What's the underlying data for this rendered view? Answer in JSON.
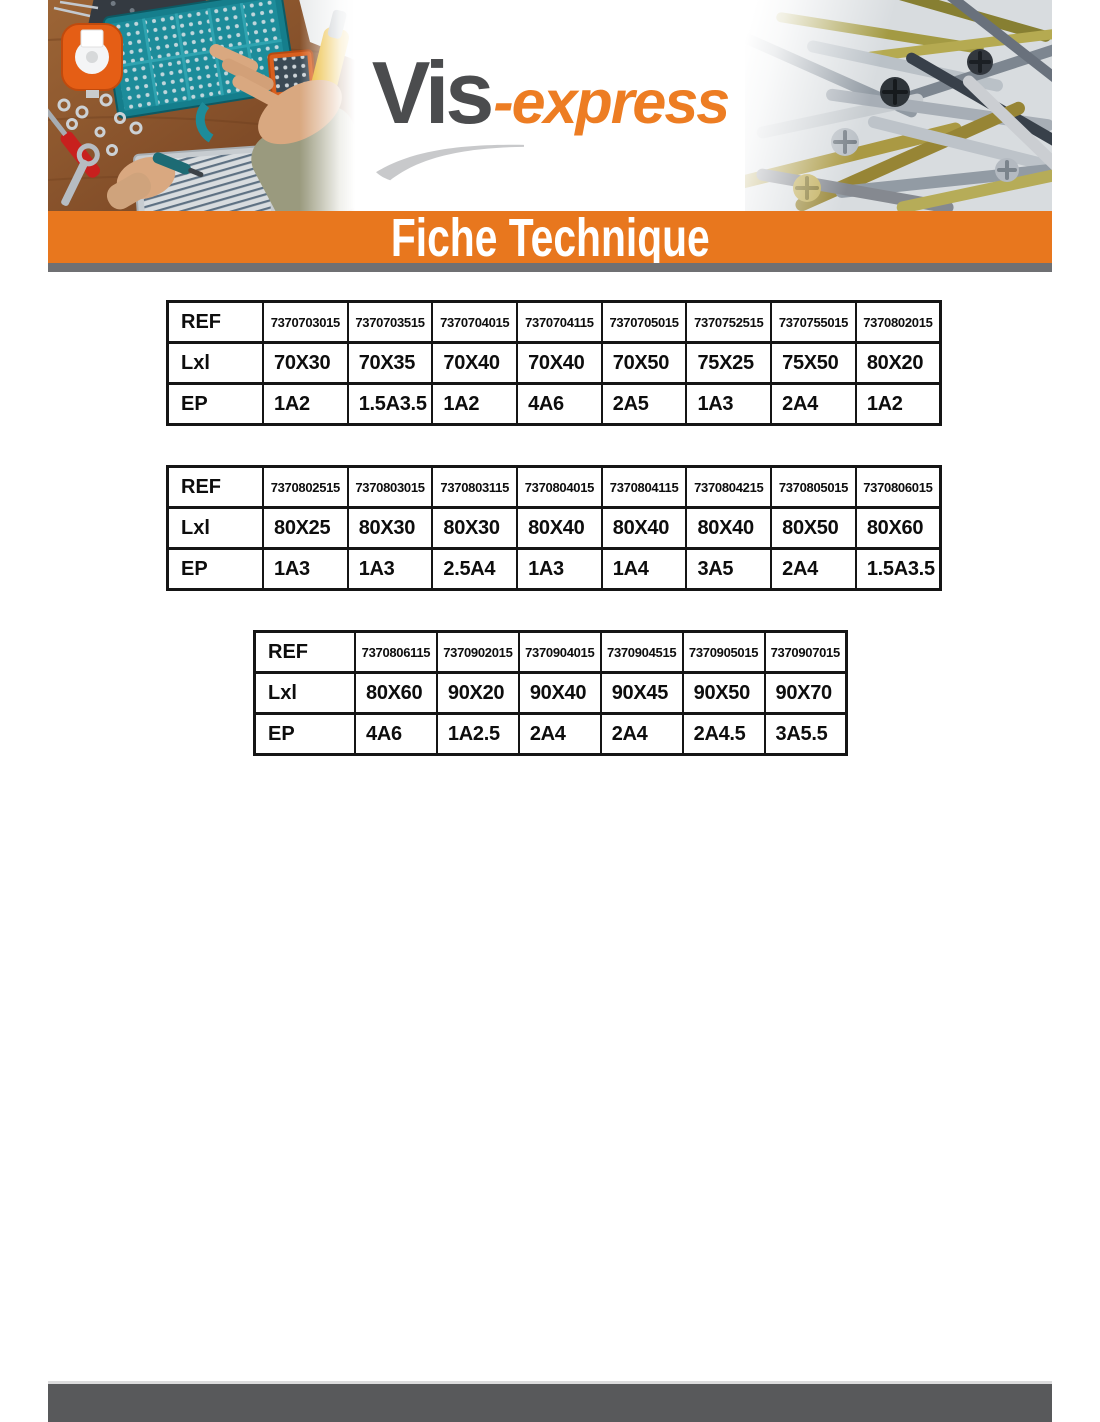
{
  "brand": {
    "logo_primary": "Vis",
    "logo_secondary": "-express"
  },
  "banner": {
    "title": "Fiche Technique"
  },
  "colors": {
    "banner_orange": "#E8771E",
    "strip_gray": "#6F7073",
    "footer_gray": "#58595B",
    "logo_gray": "#4B4C4E",
    "logo_orange": "#ED7D23",
    "table_border": "#151515"
  },
  "photos": {
    "left_alt": "workbench-with-screw-organizer-photo",
    "right_alt": "pile-of-screws-photo"
  },
  "tables": [
    {
      "labels": [
        "REF",
        "Lxl",
        "EP"
      ],
      "refs": [
        "7370703015",
        "7370703515",
        "7370704015",
        "7370704115",
        "7370705015",
        "7370752515",
        "7370755015",
        "7370802015"
      ],
      "dims": [
        "70X30",
        "70X35",
        "70X40",
        "70X40",
        "70X50",
        "75X25",
        "75X50",
        "80X20"
      ],
      "eps": [
        "1A2",
        "1.5A3.5",
        "1A2",
        "4A6",
        "2A5",
        "1A3",
        "2A4",
        "1A2"
      ]
    },
    {
      "labels": [
        "REF",
        "Lxl",
        "EP"
      ],
      "refs": [
        "7370802515",
        "7370803015",
        "7370803115",
        "7370804015",
        "7370804115",
        "7370804215",
        "7370805015",
        "7370806015"
      ],
      "dims": [
        "80X25",
        "80X30",
        "80X30",
        "80X40",
        "80X40",
        "80X40",
        "80X50",
        "80X60"
      ],
      "eps": [
        "1A3",
        "1A3",
        "2.5A4",
        "1A3",
        "1A4",
        "3A5",
        "2A4",
        "1.5A3.5"
      ]
    },
    {
      "labels": [
        "REF",
        "Lxl",
        "EP"
      ],
      "refs": [
        "7370806115",
        "7370902015",
        "7370904015",
        "7370904515",
        "7370905015",
        "7370907015"
      ],
      "dims": [
        "80X60",
        "90X20",
        "90X40",
        "90X45",
        "90X50",
        "90X70"
      ],
      "eps": [
        "4A6",
        "1A2.5",
        "2A4",
        "2A4",
        "2A4.5",
        "3A5.5"
      ]
    }
  ]
}
